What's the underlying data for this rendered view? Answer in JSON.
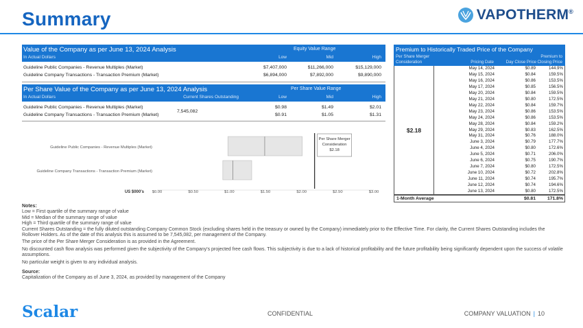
{
  "header": {
    "title": "Summary",
    "brand": "VAPOTHERM",
    "brand_mark": "®"
  },
  "valuation": {
    "title": "Value of the Company as per June 13, 2024 Analysis",
    "subtitle": "In Actual Dollars",
    "range_header": "Equity Value Range",
    "cols": [
      "Low",
      "Mid",
      "High"
    ],
    "rows": [
      {
        "label": "Guideline Public Companies - Revenue Multiples (Market)",
        "low": "$7,407,000",
        "mid": "$11,266,000",
        "high": "$15,129,000"
      },
      {
        "label": "Guideline Company Transactions - Transaction Premium (Market)",
        "low": "$6,894,000",
        "mid": "$7,892,000",
        "high": "$9,890,000"
      }
    ]
  },
  "per_share": {
    "title": "Per Share Value of the Company as per June 13, 2024 Analysis",
    "subtitle": "In Actual Dollars",
    "shares_header": "Current Shares Outstanding",
    "shares": "7,545,082",
    "range_header": "Per Share Value Range",
    "cols": [
      "Low",
      "Mid",
      "High"
    ],
    "rows": [
      {
        "label": "Guideline Public Companies - Revenue Multiples (Market)",
        "low": "$0.98",
        "mid": "$1.49",
        "high": "$2.01"
      },
      {
        "label": "Guideline Company Transactions - Transaction Premium (Market)",
        "low": "$0.91",
        "mid": "$1.05",
        "high": "$1.31"
      }
    ]
  },
  "chart_data": {
    "type": "bar",
    "orientation": "horizontal-range",
    "categories": [
      "Guideline Public Companies - Revenue Multiples (Market)",
      "Guideline Company Transactions - Transaction Premium (Market)"
    ],
    "series": [
      {
        "values": [
          [
            0.98,
            2.01
          ],
          [
            0.91,
            1.31
          ]
        ]
      }
    ],
    "mid_markers": [
      1.49,
      1.05
    ],
    "xlabel": "US $000's",
    "xlim": [
      0,
      3
    ],
    "x_ticks": [
      "$0.00",
      "$0.50",
      "$1.00",
      "$1.50",
      "$2.00",
      "$2.50",
      "$3.00"
    ],
    "reference_line": 2.18,
    "annotation": [
      "Per Share Merger",
      "Consideration",
      "$2.18"
    ],
    "bar_color": "#e6e6e6",
    "grid": false
  },
  "notes": {
    "heading": "Notes:",
    "lines": [
      "Low = First quartile of the summary range of value",
      "Mid = Median of the summary range of value",
      "High = Third quartile of the summary range of value",
      "Current Shares Outstanding = the fully diluted outstanding Company Common Stock (excluding shares held in the treasury or owned by the Company) immediately prior to the Effective Time. For clarity, the Current Shares Outstanding includes the Rollover Holders. As of the date of this analysis this is assumed to be 7,545,082, per management of the Company.",
      "The price of the Per Share Merger Consideration is as provided in the Agreement.",
      "No discounted cash flow analysis was performed given the subjectivity of the Company's projected free cash flows. This subjectivity is due to a lack of historical profitability and the future profitability being significantly dependent upon the success of volatile assumptions.",
      "No particular weight is given to any individual analysis."
    ],
    "source_heading": "Source:",
    "source": "Capitalization of the Company as of June 3, 2024, as provided by management of the Company"
  },
  "premium": {
    "title": "Premium to Historically Traded Price of the Company",
    "col1": [
      "Per Share Merger",
      "Consideration"
    ],
    "col2": "Pricing Date",
    "col3": "Day Close Price",
    "col4": [
      "Premium to",
      "Closing Price"
    ],
    "consideration": "$2.18",
    "rows": [
      {
        "date": "May 14, 2024",
        "price": "$0.89",
        "premium": "144.9%"
      },
      {
        "date": "May 15, 2024",
        "price": "$0.84",
        "premium": "159.5%"
      },
      {
        "date": "May 16, 2024",
        "price": "$0.86",
        "premium": "153.5%"
      },
      {
        "date": "May 17, 2024",
        "price": "$0.85",
        "premium": "156.5%"
      },
      {
        "date": "May 20, 2024",
        "price": "$0.84",
        "premium": "159.5%"
      },
      {
        "date": "May 21, 2024",
        "price": "$0.80",
        "premium": "172.5%"
      },
      {
        "date": "May 22, 2024",
        "price": "$0.84",
        "premium": "159.7%"
      },
      {
        "date": "May 23, 2024",
        "price": "$0.86",
        "premium": "153.5%"
      },
      {
        "date": "May 24, 2024",
        "price": "$0.86",
        "premium": "153.5%"
      },
      {
        "date": "May 28, 2024",
        "price": "$0.84",
        "premium": "159.2%"
      },
      {
        "date": "May 29, 2024",
        "price": "$0.83",
        "premium": "162.5%"
      },
      {
        "date": "May 31, 2024",
        "price": "$0.76",
        "premium": "188.0%"
      },
      {
        "date": "June 3, 2024",
        "price": "$0.79",
        "premium": "177.7%"
      },
      {
        "date": "June 4, 2024",
        "price": "$0.80",
        "premium": "172.6%"
      },
      {
        "date": "June 5, 2024",
        "price": "$0.71",
        "premium": "206.0%"
      },
      {
        "date": "June 6, 2024",
        "price": "$0.75",
        "premium": "190.7%"
      },
      {
        "date": "June 7, 2024",
        "price": "$0.80",
        "premium": "172.5%"
      },
      {
        "date": "June 10, 2024",
        "price": "$0.72",
        "premium": "202.8%"
      },
      {
        "date": "June 11, 2024",
        "price": "$0.74",
        "premium": "195.7%"
      },
      {
        "date": "June 12, 2024",
        "price": "$0.74",
        "premium": "194.6%"
      },
      {
        "date": "June 13, 2024",
        "price": "$0.80",
        "premium": "172.5%"
      }
    ],
    "avg_label": "1-Month Average",
    "avg_price": "$0.81",
    "avg_premium": "171.8%"
  },
  "footer": {
    "logo": "Scalar",
    "center": "CONFIDENTIAL",
    "right": "COMPANY VALUATION",
    "sep": "|",
    "page": "10"
  },
  "colors": {
    "accent": "#1976d2",
    "title": "#1565c0",
    "brand": "#1f4e8c"
  },
  "icons": {
    "brand_logo": "vapotherm-logo-icon"
  }
}
